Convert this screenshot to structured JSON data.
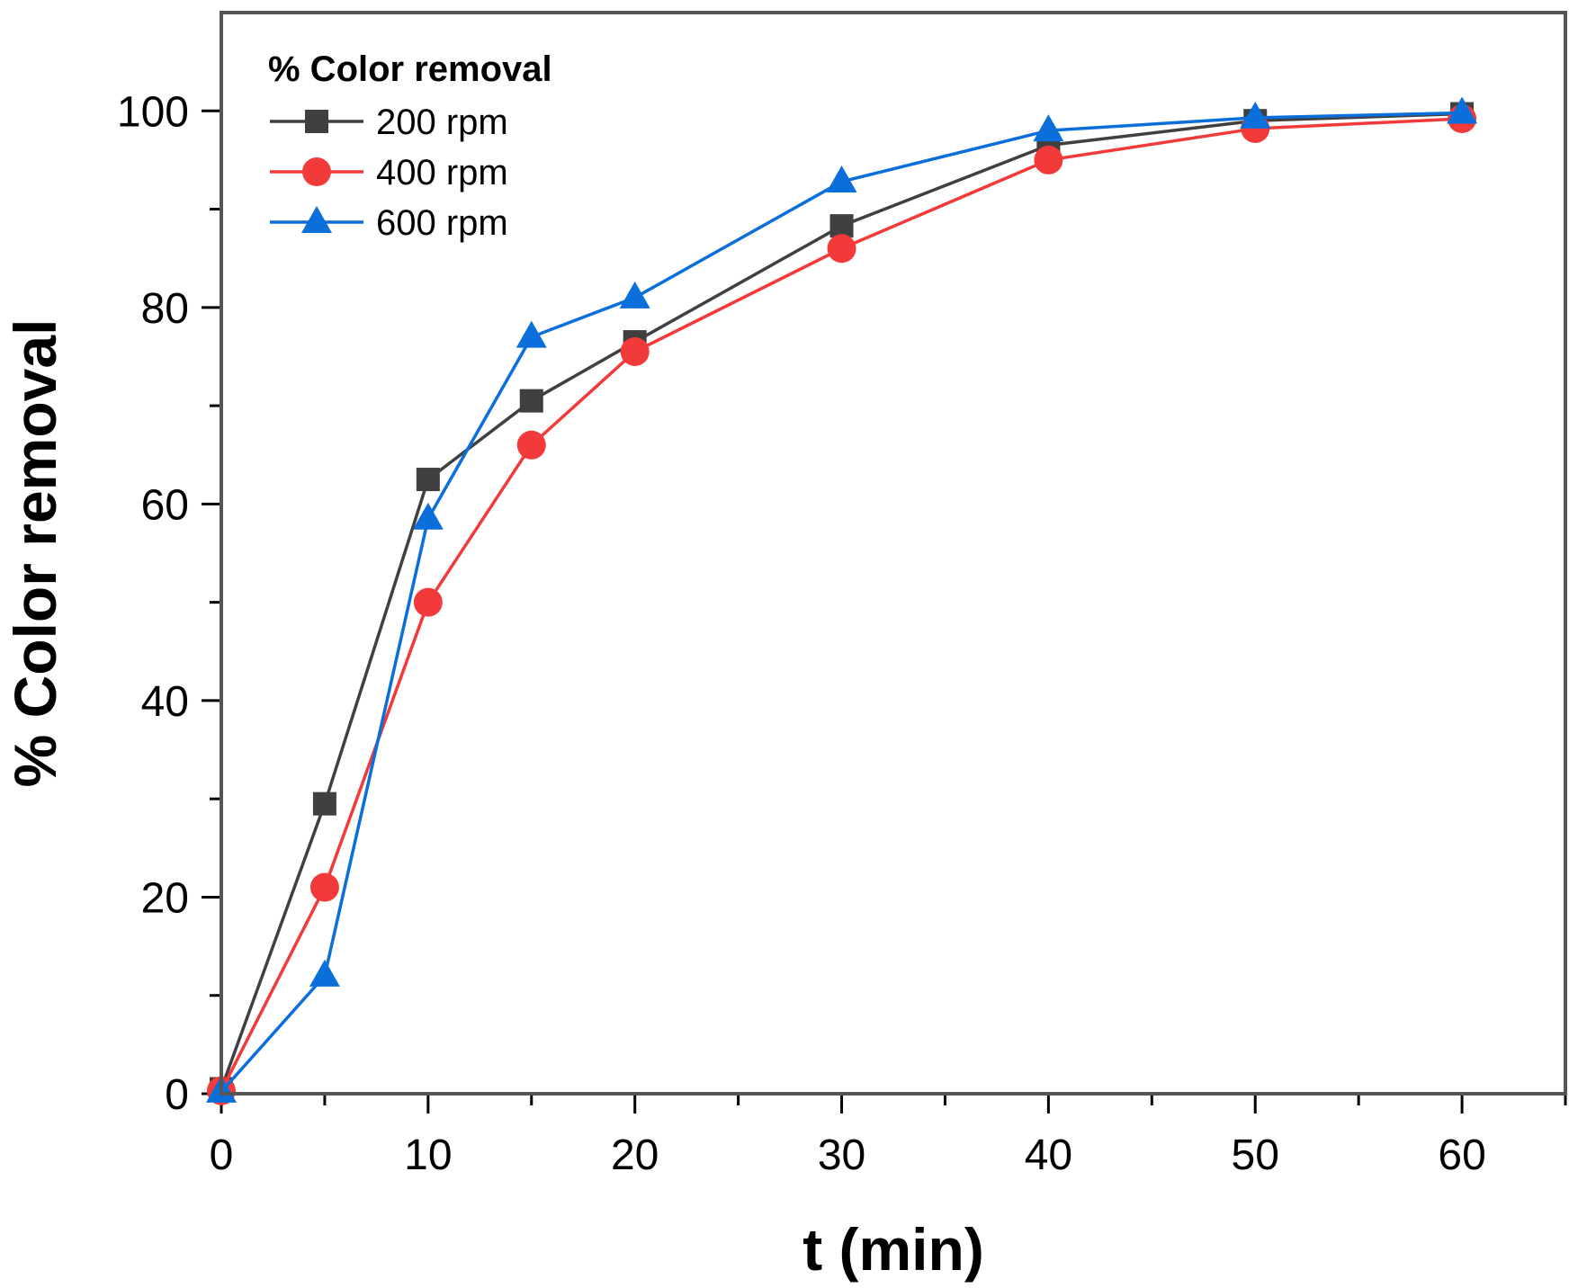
{
  "chart_data": {
    "type": "line",
    "title": "",
    "xlabel": "t (min)",
    "ylabel": "% Color removal",
    "xlim": [
      0,
      65
    ],
    "ylim": [
      0,
      110
    ],
    "xticks": [
      0,
      10,
      20,
      30,
      40,
      50,
      60
    ],
    "yticks": [
      0,
      20,
      40,
      60,
      80,
      100
    ],
    "legend": {
      "title": "% Color removal",
      "position": "top-left"
    },
    "x": [
      0,
      5,
      10,
      15,
      20,
      30,
      40,
      50,
      60
    ],
    "series": [
      {
        "name": "200 rpm",
        "marker": "square",
        "color": "#404040",
        "values": [
          0.5,
          29.5,
          62.5,
          70.5,
          76.5,
          88.3,
          96.5,
          99.0,
          99.7
        ]
      },
      {
        "name": "400 rpm",
        "marker": "circle",
        "color": "#f23a3a",
        "values": [
          0.3,
          21.0,
          50.0,
          66.0,
          75.5,
          86.0,
          95.0,
          98.2,
          99.2
        ]
      },
      {
        "name": "600 rpm",
        "marker": "triangle",
        "color": "#0a6fdb",
        "values": [
          0.2,
          12.0,
          58.5,
          77.0,
          81.0,
          92.8,
          98.0,
          99.3,
          99.8
        ]
      }
    ]
  }
}
